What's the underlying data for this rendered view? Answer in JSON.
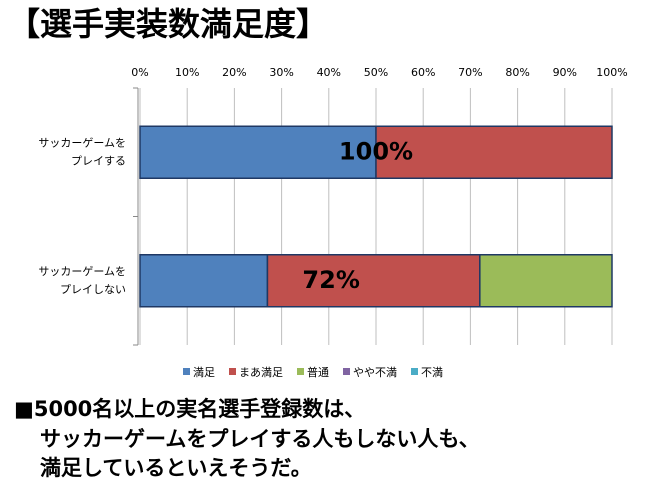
{
  "chart_data": {
    "type": "stacked-barh",
    "title": "【選手実装数満足度】",
    "categories": [
      [
        "サッカーゲームを",
        "プレイする"
      ],
      [
        "サッカーゲームを",
        "プレイしない"
      ]
    ],
    "series": [
      {
        "name": "満足",
        "color": "#4f81bd",
        "values": [
          50,
          27
        ]
      },
      {
        "name": "まあ満足",
        "color": "#c0504d",
        "values": [
          50,
          45
        ]
      },
      {
        "name": "普通",
        "color": "#9bbb59",
        "values": [
          0,
          28
        ]
      },
      {
        "name": "やや不満",
        "color": "#8064a2",
        "values": [
          0,
          0
        ]
      },
      {
        "name": "不満",
        "color": "#4bacc6",
        "values": [
          0,
          0
        ]
      }
    ],
    "annotations": [
      "100%",
      "72%"
    ],
    "xlim": [
      0,
      100
    ],
    "xticks": [
      {
        "value": 0,
        "label": "0%"
      },
      {
        "value": 10,
        "label": "10%"
      },
      {
        "value": 20,
        "label": "20%"
      },
      {
        "value": 30,
        "label": "30%"
      },
      {
        "value": 40,
        "label": "40%"
      },
      {
        "value": 50,
        "label": "50%"
      },
      {
        "value": 60,
        "label": "60%"
      },
      {
        "value": 70,
        "label": "70%"
      },
      {
        "value": 80,
        "label": "80%"
      },
      {
        "value": 90,
        "label": "90%"
      },
      {
        "value": 100,
        "label": "100%"
      }
    ],
    "grid": true,
    "legend": "bottom",
    "footer": [
      "■5000名以上の実名選手登録数は、",
      "サッカーゲームをプレイする人もしない人も、",
      "満足しているといえそうだ。"
    ]
  }
}
